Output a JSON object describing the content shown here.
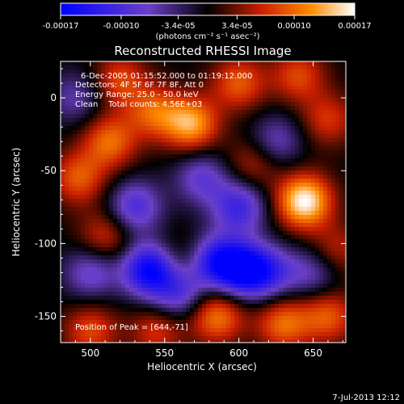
{
  "chart_data": {
    "type": "heatmap",
    "title": "Reconstructed RHESSI Image",
    "xlabel": "Heliocentric X (arcsec)",
    "ylabel": "Heliocentric Y (arcsec)",
    "xlim": [
      480,
      672
    ],
    "ylim": [
      -168,
      25
    ],
    "xticks": [
      500,
      550,
      600,
      650
    ],
    "yticks": [
      0,
      -50,
      -100,
      -150
    ],
    "grid": false,
    "colorbar": {
      "placement": "top",
      "range": [
        -0.00017,
        0.00017
      ],
      "tick_labels": [
        "-0.00017",
        "-0.00010",
        "-3.4e-05",
        "3.4e-05",
        "0.00010",
        "0.00017"
      ],
      "tick_values": [
        -0.00017,
        -0.0001,
        -3.4e-05,
        3.4e-05,
        0.0001,
        0.00017
      ],
      "unit_label": "(photons cm⁻² s⁻¹ asec⁻²)",
      "colors": [
        "#0000ff",
        "#6a3fc8",
        "#000000",
        "#c81e00",
        "#ff8a00",
        "#ffffff"
      ]
    },
    "annotations": [
      "6-Dec-2005 01:15:52.000 to 01:19:12.000",
      "Detectors: 4F 5F 6F 7F 8F, Att 0",
      "Energy Range: 25.0 - 50.0 keV",
      "Clean    Total counts: 4.56E+03",
      "Position of Peak = [644,-71]"
    ],
    "peak": {
      "x": 644,
      "y": -71
    },
    "sources": [
      {
        "x": 644,
        "y": -71,
        "value": 0.00017
      },
      {
        "x": 568,
        "y": -18,
        "value": 0.00013
      },
      {
        "x": 543,
        "y": -10,
        "value": 9e-05
      },
      {
        "x": 513,
        "y": -30,
        "value": 0.0001
      },
      {
        "x": 492,
        "y": -55,
        "value": 9e-05
      },
      {
        "x": 520,
        "y": 12,
        "value": 8e-05
      },
      {
        "x": 600,
        "y": 10,
        "value": 9e-05
      },
      {
        "x": 640,
        "y": 15,
        "value": 8e-05
      },
      {
        "x": 660,
        "y": -15,
        "value": 7e-05
      },
      {
        "x": 610,
        "y": -45,
        "value": 6e-05
      },
      {
        "x": 510,
        "y": -95,
        "value": 7e-05
      },
      {
        "x": 585,
        "y": -150,
        "value": 0.00011
      },
      {
        "x": 630,
        "y": -155,
        "value": 0.0001
      },
      {
        "x": 660,
        "y": -150,
        "value": 9e-05
      },
      {
        "x": 500,
        "y": -160,
        "value": 8e-05
      },
      {
        "x": 545,
        "y": -160,
        "value": 7e-05
      },
      {
        "x": 560,
        "y": -110,
        "value": 4e-05
      },
      {
        "x": 665,
        "y": -105,
        "value": 6e-05
      },
      {
        "x": 540,
        "y": -118,
        "value": -0.00017
      },
      {
        "x": 585,
        "y": -112,
        "value": -0.00013
      },
      {
        "x": 603,
        "y": -118,
        "value": -0.00015
      },
      {
        "x": 530,
        "y": -75,
        "value": -0.0001
      },
      {
        "x": 600,
        "y": -75,
        "value": -0.00011
      },
      {
        "x": 620,
        "y": -120,
        "value": -9e-05
      },
      {
        "x": 575,
        "y": -55,
        "value": -8e-05
      },
      {
        "x": 500,
        "y": -120,
        "value": -8e-05
      },
      {
        "x": 650,
        "y": -120,
        "value": -7e-05
      },
      {
        "x": 490,
        "y": 0,
        "value": -6e-05
      },
      {
        "x": 560,
        "y": -135,
        "value": -9e-05
      },
      {
        "x": 625,
        "y": -30,
        "value": -7e-05
      }
    ]
  },
  "footer": {
    "timestamp": "7-Jul-2013 12:12"
  }
}
